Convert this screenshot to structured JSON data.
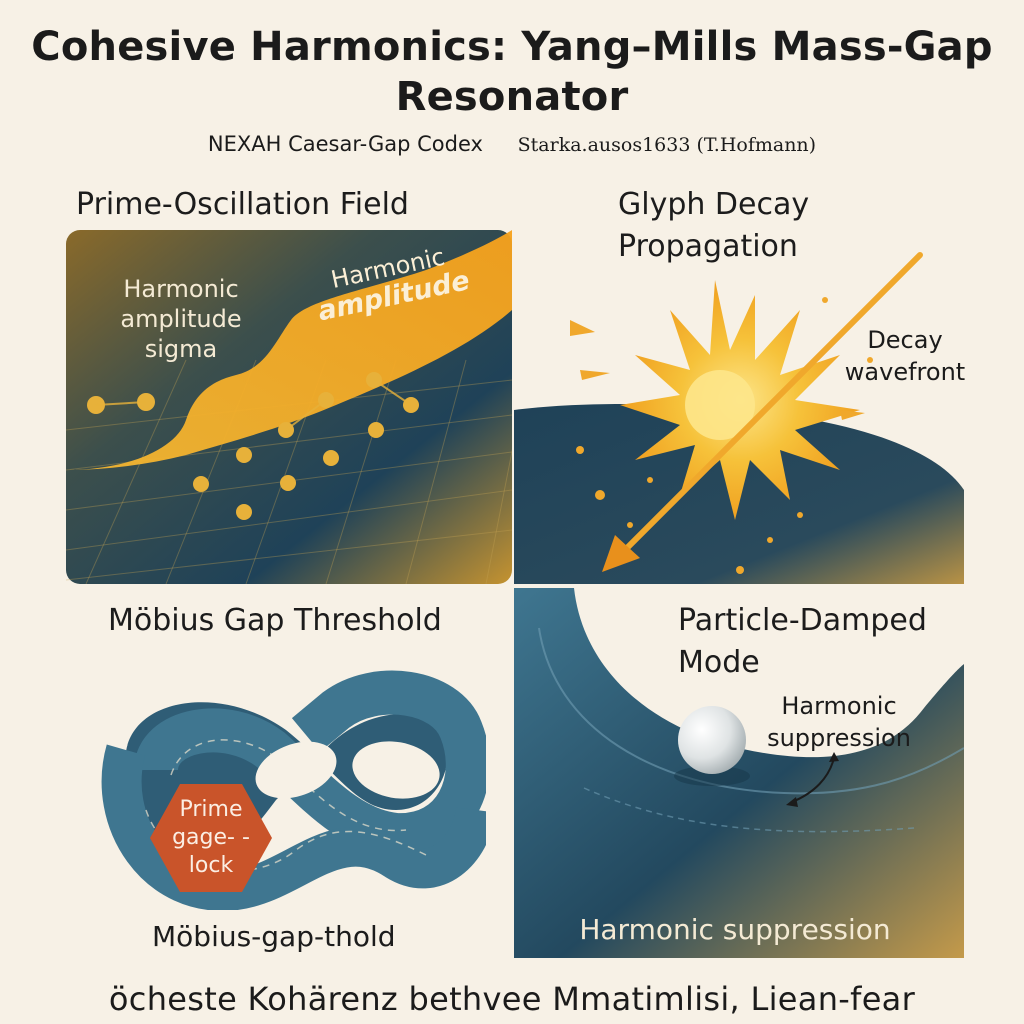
{
  "header": {
    "title": "Cohesive Harmonics: Yang–Mills Mass-Gap Resonator",
    "subtitle_left": "NEXAH   Caesar-Gap Codex",
    "subtitle_right": "Starka.ausos1633 (T.Hofmann)"
  },
  "panels": {
    "prime_oscillation": {
      "title": "Prime-Oscillation Field",
      "label_left": "Harmonic amplitude sigma",
      "label_right_line1": "Harmonic",
      "label_right_line2": "amplitude"
    },
    "glyph_decay": {
      "title_line1": "Glyph Decay",
      "title_line2": "Propagation",
      "label": "Decay wavefront"
    },
    "mobius_gap": {
      "title": "Möbius Gap Threshold",
      "badge": "Prime gage- -lock",
      "caption": "Möbius-gap-thold"
    },
    "particle_damped": {
      "title_line1": "Particle-Damped",
      "title_line2": "Mode",
      "label": "Harmonic suppression",
      "caption": "Harmonic suppression"
    }
  },
  "footer": {
    "text": "öcheste Kohärenz bethvee Mmatimlisi, Liean-fear"
  },
  "colors": {
    "background": "#f7f1e6",
    "navy": "#1f4258",
    "teal": "#3f7690",
    "gold": "#f0b02a",
    "badge": "#c9542a"
  }
}
